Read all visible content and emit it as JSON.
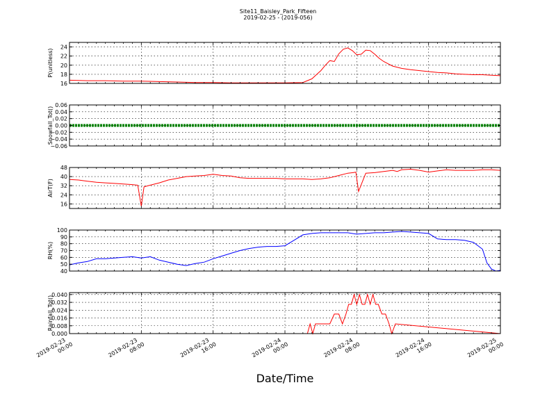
{
  "title": {
    "line1": "Site11_Baisley_Park_Fifteen",
    "line2": "2019-02-25 - (2019-056)"
  },
  "xlabel": "Date/Time",
  "x_ticks": [
    [
      "2019-02-23",
      "00:00"
    ],
    [
      "2019-02-23",
      "08:00"
    ],
    [
      "2019-02-23",
      "16:00"
    ],
    [
      "2019-02-24",
      "00:00"
    ],
    [
      "2019-02-24",
      "08:00"
    ],
    [
      "2019-02-24",
      "16:00"
    ],
    [
      "2019-02-25",
      "00:00"
    ]
  ],
  "chart_data": [
    {
      "type": "line",
      "ylabel": "P(unitless)",
      "ylim": [
        16,
        25
      ],
      "yticks": [
        16,
        18,
        20,
        22,
        24
      ],
      "ytick_labels": [
        "16",
        "18",
        "20",
        "22",
        "24"
      ],
      "grid": true,
      "xlim": [
        "2019-02-23 00:00",
        "2019-02-25 00:00"
      ],
      "series": [
        {
          "color": "#ff0000",
          "x": [
            0,
            2,
            4,
            6,
            8,
            10,
            12,
            14,
            16,
            18,
            20,
            22,
            24,
            26,
            27,
            27.5,
            28,
            28.5,
            29,
            29.5,
            30,
            30.5,
            31,
            31.5,
            32,
            32.5,
            33,
            33.5,
            34,
            34.5,
            35,
            35.5,
            36,
            37,
            38,
            39,
            40,
            41,
            42,
            43,
            44,
            45,
            46,
            47,
            48
          ],
          "y": [
            16.7,
            16.6,
            16.6,
            16.5,
            16.5,
            16.4,
            16.3,
            16.2,
            16.2,
            16.1,
            16.1,
            16.1,
            16.1,
            16.2,
            17.0,
            17.9,
            18.8,
            20.0,
            21.0,
            20.8,
            22.5,
            23.5,
            23.8,
            23.2,
            22.3,
            22.4,
            23.3,
            23.2,
            22.4,
            21.5,
            20.8,
            20.3,
            19.8,
            19.3,
            19.0,
            18.8,
            18.6,
            18.4,
            18.3,
            18.1,
            18.0,
            17.9,
            17.9,
            17.8,
            17.7
          ]
        }
      ]
    },
    {
      "type": "line",
      "ylabel": "Snowfall_Tot()",
      "ylim": [
        -0.06,
        0.06
      ],
      "yticks": [
        -0.06,
        -0.04,
        -0.02,
        0.0,
        0.02,
        0.04,
        0.06
      ],
      "ytick_labels": [
        "−0.06",
        "−0.04",
        "−0.02",
        "0.00",
        "0.02",
        "0.04",
        "0.06"
      ],
      "grid": true,
      "xlim": [
        "2019-02-23 00:00",
        "2019-02-25 00:00"
      ],
      "series": [
        {
          "color": "#008000",
          "x": [
            0,
            48
          ],
          "y": [
            0.0,
            0.0
          ]
        }
      ]
    },
    {
      "type": "line",
      "ylabel": "AirT(F)",
      "ylim": [
        12,
        48
      ],
      "yticks": [
        16,
        24,
        32,
        40,
        48
      ],
      "ytick_labels": [
        "16",
        "24",
        "32",
        "40",
        "48"
      ],
      "grid": true,
      "xlim": [
        "2019-02-23 00:00",
        "2019-02-25 00:00"
      ],
      "series": [
        {
          "color": "#ff0000",
          "x": [
            0,
            1,
            2,
            3,
            4,
            5,
            6,
            7,
            7.6,
            8.0,
            8.3,
            9,
            10,
            11,
            12,
            13,
            14,
            15,
            16,
            17,
            18,
            19,
            20,
            21,
            22,
            23,
            24,
            25,
            26,
            27,
            28,
            29,
            30,
            31,
            31.6,
            31.9,
            32.2,
            33,
            34,
            35,
            36,
            36.5,
            37,
            38,
            39,
            40,
            41,
            42,
            43,
            44,
            45,
            46,
            47,
            48
          ],
          "y": [
            37.5,
            37,
            36,
            35,
            34.5,
            34,
            33.5,
            33,
            32.5,
            14,
            31,
            32.5,
            34.5,
            37,
            38.5,
            40,
            40.5,
            41,
            42,
            41,
            40.5,
            39,
            38.5,
            38.5,
            38.5,
            38.5,
            38,
            38,
            38,
            37.5,
            38,
            39,
            41,
            43,
            43.5,
            44,
            27,
            43,
            43.5,
            44.5,
            45.5,
            44.5,
            46,
            46.5,
            45.5,
            44,
            45,
            46,
            45.5,
            45.5,
            45.5,
            46,
            46,
            45.5
          ]
        }
      ]
    },
    {
      "type": "line",
      "ylabel": "RH(%)",
      "ylim": [
        40,
        100
      ],
      "yticks": [
        40,
        50,
        60,
        70,
        80,
        90,
        100
      ],
      "ytick_labels": [
        "40",
        "50",
        "60",
        "70",
        "80",
        "90",
        "100"
      ],
      "grid": true,
      "xlim": [
        "2019-02-23 00:00",
        "2019-02-25 00:00"
      ],
      "series": [
        {
          "color": "#0000ff",
          "x": [
            0,
            1,
            2,
            3,
            4,
            5,
            6,
            7,
            8,
            9,
            10,
            11,
            12,
            13,
            14,
            15,
            16,
            17,
            18,
            19,
            20,
            21,
            22,
            23,
            24,
            25,
            26,
            27,
            28,
            29,
            30,
            31,
            32,
            33,
            34,
            35,
            36,
            37,
            38,
            39,
            40,
            41,
            42,
            43,
            44,
            45,
            46,
            46.5,
            47,
            47.5,
            48
          ],
          "y": [
            49,
            52,
            54,
            58,
            58,
            59,
            60,
            61,
            59,
            61,
            56,
            53,
            50,
            48,
            51,
            53,
            58,
            62,
            66,
            70,
            73,
            75,
            76,
            76,
            77,
            85,
            93,
            95,
            96,
            96,
            96,
            96,
            94,
            95,
            96,
            96,
            97,
            98,
            97,
            96,
            95,
            87,
            86,
            86,
            85,
            82,
            72,
            52,
            43,
            40,
            41
          ]
        }
      ]
    },
    {
      "type": "line",
      "ylabel": "Rainfall_Tot()",
      "ylim": [
        0.0,
        0.042
      ],
      "yticks": [
        0.0,
        0.008,
        0.016,
        0.024,
        0.032,
        0.04
      ],
      "ytick_labels": [
        "0.000",
        "0.008",
        "0.016",
        "0.024",
        "0.032",
        "0.040"
      ],
      "grid": true,
      "xlim": [
        "2019-02-23 00:00",
        "2019-02-25 00:00"
      ],
      "series": [
        {
          "color": "#ff0000",
          "x": [
            0,
            26.5,
            26.8,
            27.1,
            27.4,
            28,
            29,
            29.5,
            30,
            30.4,
            30.8,
            31.1,
            31.4,
            31.7,
            32.0,
            32.3,
            32.6,
            32.9,
            33.2,
            33.5,
            33.8,
            34.1,
            34.4,
            34.8,
            35.2,
            35.6,
            35.9,
            36.3,
            48
          ],
          "y": [
            0,
            0,
            0.01,
            0,
            0.01,
            0.01,
            0.01,
            0.02,
            0.02,
            0.01,
            0.02,
            0.03,
            0.03,
            0.04,
            0.03,
            0.04,
            0.03,
            0.03,
            0.04,
            0.03,
            0.04,
            0.03,
            0.03,
            0.02,
            0.02,
            0.01,
            0,
            0.01,
            0
          ]
        }
      ]
    }
  ]
}
